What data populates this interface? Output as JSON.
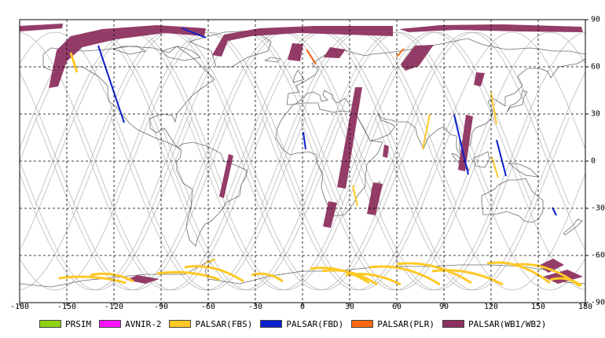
{
  "axes": {
    "x_ticks": [
      "-180",
      "-150",
      "-120",
      "-90",
      "-60",
      "-30",
      "0",
      "30",
      "60",
      "90",
      "120",
      "150",
      "180"
    ],
    "y_ticks": [
      "90",
      "60",
      "30",
      "0",
      "-30",
      "-60",
      "-90"
    ],
    "xlim": [
      -180,
      180
    ],
    "ylim": [
      -90,
      90
    ],
    "grid": "dashed"
  },
  "legend": [
    {
      "label": "PRSIM",
      "color": "#8fd113"
    },
    {
      "label": "AVNIR-2",
      "color": "#ff11ff"
    },
    {
      "label": "PALSAR(FBS)",
      "color": "#ffc825"
    },
    {
      "label": "PALSAR(FBD)",
      "color": "#0b1fcf"
    },
    {
      "label": "PALSAR(PLR)",
      "color": "#ff6a12"
    },
    {
      "label": "PALSAR(WB1/WB2)",
      "color": "#8e3160"
    }
  ],
  "colors": {
    "orbit": "#b9b9b9",
    "coast": "#6b6b6b",
    "grid": "#000000"
  }
}
